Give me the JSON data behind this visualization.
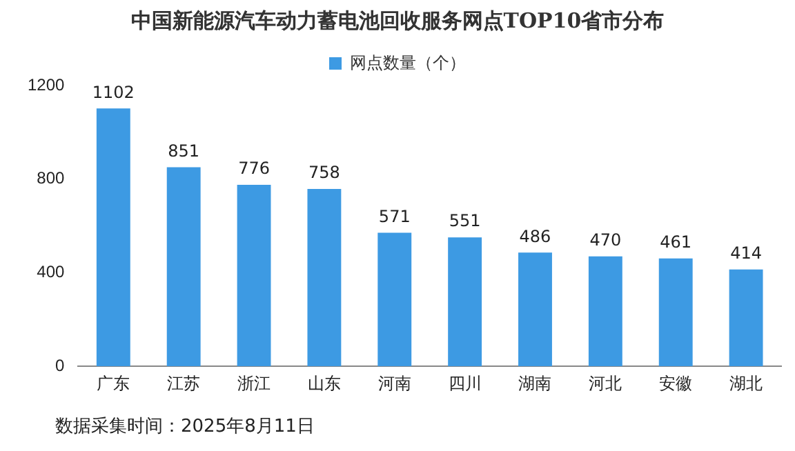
{
  "chart_data": {
    "type": "bar",
    "title": "中国新能源汽车动力蓄电池回收服务网点TOP10省市分布",
    "categories": [
      "广东",
      "江苏",
      "浙江",
      "山东",
      "河南",
      "四川",
      "湖南",
      "河北",
      "安徽",
      "湖北"
    ],
    "series": [
      {
        "name": "网点数量（个）",
        "color": "#3d9ae3",
        "values": [
          1102,
          851,
          776,
          758,
          571,
          551,
          486,
          470,
          461,
          414
        ]
      }
    ],
    "ylim": [
      0,
      1200
    ],
    "yticks": [
      0,
      400,
      800,
      1200
    ],
    "grid": false,
    "legend": "top",
    "data_labels": true,
    "annotations": [
      "数据采集时间：2025年8月11日"
    ]
  }
}
